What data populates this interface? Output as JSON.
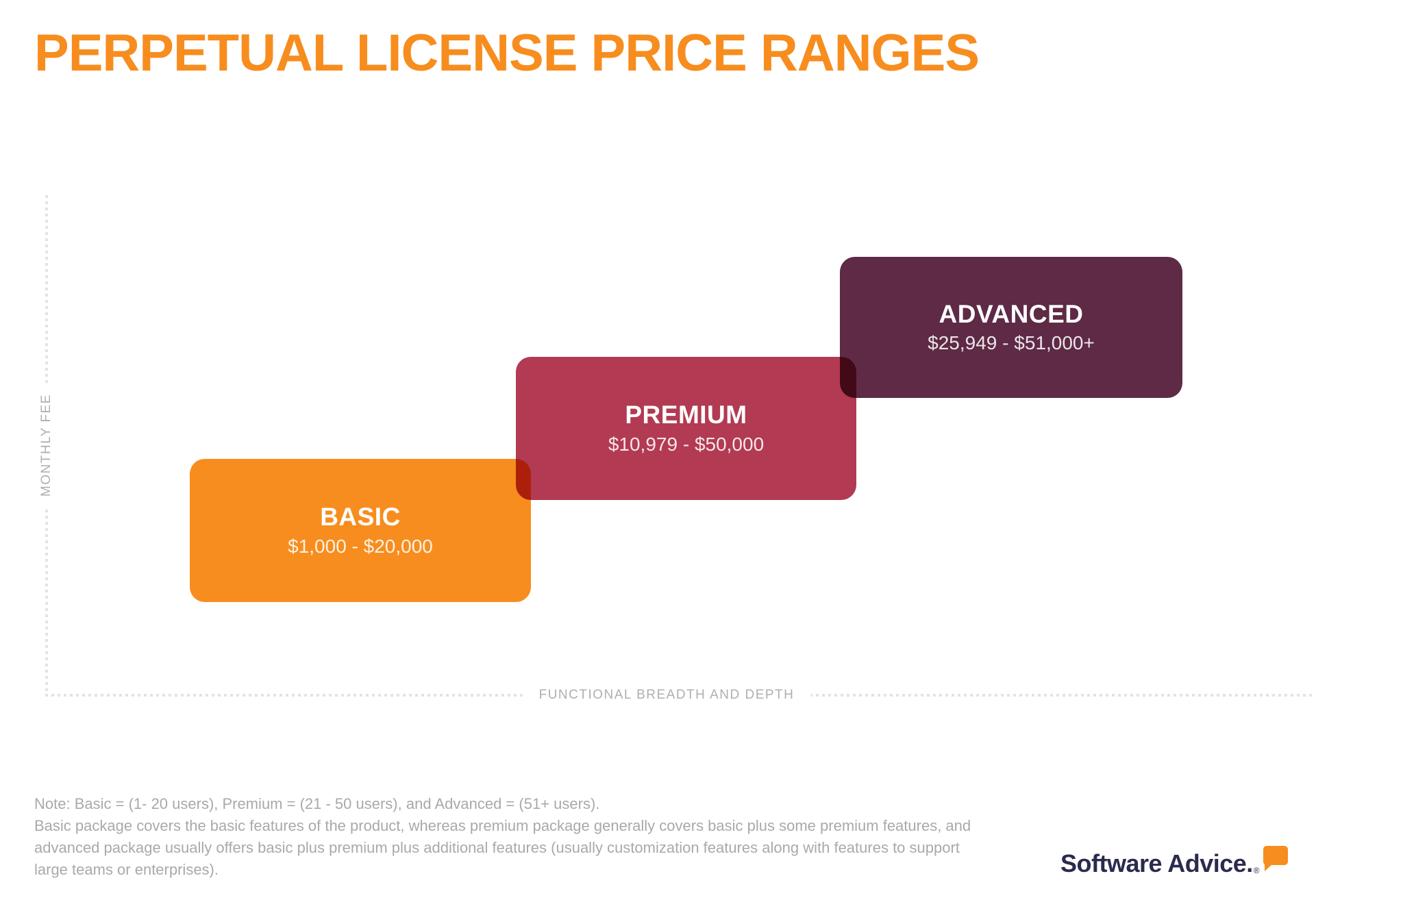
{
  "chart_data": {
    "type": "bar",
    "subtype": "stepped-price-range-blocks",
    "title": "PERPETUAL LICENSE PRICE RANGES",
    "xlabel": "FUNCTIONAL BREADTH AND DEPTH",
    "ylabel": "MONTHLY FEE",
    "categories": [
      "BASIC",
      "PREMIUM",
      "ADVANCED"
    ],
    "series": [
      {
        "name": "BASIC",
        "price_range": "$1,000 - $20,000",
        "low": 1000,
        "high": 20000,
        "users": "1- 20 users",
        "color": "#F78D1E"
      },
      {
        "name": "PREMIUM",
        "price_range": "$10,979 - $50,000",
        "low": 10979,
        "high": 50000,
        "users": "21 - 50 users",
        "color": "#B23A52"
      },
      {
        "name": "ADVANCED",
        "price_range": "$25,949 - $51,000+",
        "low": 25949,
        "high": 51000,
        "users": "51+ users",
        "color": "#5E2A46"
      }
    ],
    "legend": false,
    "grid": false,
    "axis_style": "dotted-gray"
  },
  "note": {
    "line1": "Note: Basic = (1- 20 users), Premium = (21 - 50 users), and Advanced = (51+ users).",
    "body": "Basic package covers the basic features of the product, whereas premium package generally covers basic plus some premium features, and advanced package usually offers basic plus premium plus additional features (usually customization features along with features to support large teams or enterprises)."
  },
  "logo": {
    "text": "Software Advice.",
    "registered": "®",
    "bubble_icon_color": "#F78D1E"
  },
  "colors": {
    "title_orange": "#F78D1E",
    "basic_orange": "#F78D1E",
    "premium_red": "#B23A52",
    "advanced_plum": "#5E2A46",
    "overlap_blend_mode": "multiply",
    "axis_dot_gray": "#E3E3E3",
    "axis_label_gray": "#AFAFAF",
    "note_gray": "#A9A9A9",
    "logo_navy": "#2B2A4E",
    "background": "#FFFFFF"
  }
}
